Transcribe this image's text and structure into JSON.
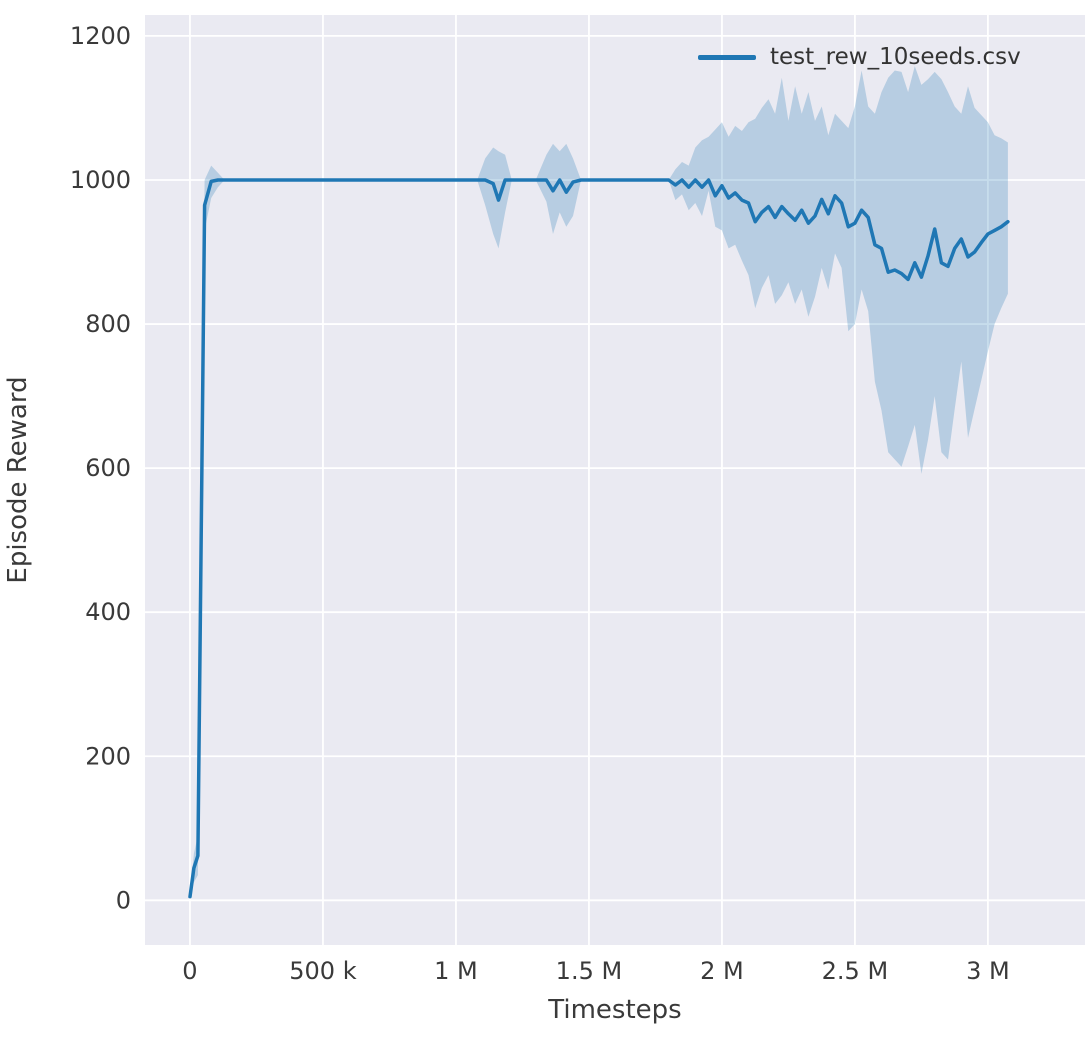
{
  "figure": {
    "background": "#ffffff",
    "axes_background": "#eaeaf2",
    "grid_color": "#ffffff",
    "tick_color": "#3a3a3a"
  },
  "chart_data": {
    "type": "line",
    "title": "",
    "xlabel": "Timesteps",
    "ylabel": "Episode Reward",
    "xlim": [
      -169000,
      3365000
    ],
    "ylim": [
      -62,
      1229
    ],
    "grid": true,
    "legend_position": "upper right",
    "x_ticks": [
      0,
      500000,
      1000000,
      1500000,
      2000000,
      2500000,
      3000000
    ],
    "x_tick_labels": [
      "0",
      "500 k",
      "1 M",
      "1.5 M",
      "2 M",
      "2.5 M",
      "3 M"
    ],
    "y_ticks": [
      0,
      200,
      400,
      600,
      800,
      1000,
      1200
    ],
    "y_tick_labels": [
      "0",
      "200",
      "400",
      "600",
      "800",
      "1000",
      "1200"
    ],
    "series": [
      {
        "name": "test_rew_10seeds.csv",
        "color": "#1f77b4",
        "band_color": "#1f77b4",
        "band_alpha": 0.25,
        "points_format": [
          "timestep",
          "mean_reward",
          "band_low",
          "band_high"
        ],
        "points": [
          [
            0,
            5,
            5,
            5
          ],
          [
            15000,
            45,
            25,
            65
          ],
          [
            30000,
            62,
            35,
            90
          ],
          [
            55000,
            965,
            930,
            1000
          ],
          [
            80000,
            998,
            975,
            1020
          ],
          [
            105000,
            1000,
            990,
            1010
          ],
          [
            130000,
            1000,
            1000,
            1000
          ],
          [
            300000,
            1000,
            1000,
            1000
          ],
          [
            500000,
            1000,
            1000,
            1000
          ],
          [
            700000,
            1000,
            1000,
            1000
          ],
          [
            900000,
            1000,
            1000,
            1000
          ],
          [
            1080000,
            1000,
            1000,
            1000
          ],
          [
            1110000,
            1000,
            965,
            1030
          ],
          [
            1140000,
            995,
            925,
            1045
          ],
          [
            1160000,
            972,
            905,
            1040
          ],
          [
            1185000,
            1000,
            955,
            1035
          ],
          [
            1210000,
            1000,
            1000,
            1000
          ],
          [
            1300000,
            1000,
            1000,
            1000
          ],
          [
            1340000,
            1000,
            970,
            1035
          ],
          [
            1365000,
            985,
            925,
            1050
          ],
          [
            1390000,
            1000,
            955,
            1040
          ],
          [
            1415000,
            983,
            935,
            1050
          ],
          [
            1440000,
            997,
            950,
            1030
          ],
          [
            1470000,
            1000,
            1000,
            1000
          ],
          [
            1600000,
            1000,
            1000,
            1000
          ],
          [
            1750000,
            1000,
            1000,
            1000
          ],
          [
            1800000,
            1000,
            1000,
            1000
          ],
          [
            1825000,
            993,
            972,
            1015
          ],
          [
            1850000,
            1000,
            980,
            1025
          ],
          [
            1875000,
            990,
            958,
            1020
          ],
          [
            1900000,
            1000,
            968,
            1045
          ],
          [
            1925000,
            990,
            950,
            1055
          ],
          [
            1950000,
            1000,
            985,
            1060
          ],
          [
            1975000,
            978,
            935,
            1070
          ],
          [
            2000000,
            992,
            930,
            1080
          ],
          [
            2025000,
            975,
            905,
            1060
          ],
          [
            2050000,
            982,
            910,
            1075
          ],
          [
            2075000,
            972,
            888,
            1068
          ],
          [
            2100000,
            968,
            868,
            1080
          ],
          [
            2125000,
            942,
            822,
            1085
          ],
          [
            2150000,
            955,
            850,
            1100
          ],
          [
            2175000,
            963,
            868,
            1112
          ],
          [
            2200000,
            948,
            828,
            1092
          ],
          [
            2225000,
            963,
            840,
            1142
          ],
          [
            2250000,
            953,
            858,
            1082
          ],
          [
            2275000,
            944,
            828,
            1130
          ],
          [
            2300000,
            958,
            848,
            1092
          ],
          [
            2325000,
            940,
            810,
            1122
          ],
          [
            2350000,
            950,
            838,
            1082
          ],
          [
            2375000,
            973,
            878,
            1102
          ],
          [
            2400000,
            953,
            848,
            1062
          ],
          [
            2425000,
            978,
            898,
            1092
          ],
          [
            2450000,
            968,
            878,
            1082
          ],
          [
            2475000,
            935,
            790,
            1072
          ],
          [
            2500000,
            940,
            800,
            1102
          ],
          [
            2525000,
            958,
            848,
            1152
          ],
          [
            2550000,
            948,
            818,
            1102
          ],
          [
            2575000,
            910,
            720,
            1092
          ],
          [
            2600000,
            905,
            680,
            1122
          ],
          [
            2625000,
            872,
            622,
            1142
          ],
          [
            2650000,
            875,
            612,
            1152
          ],
          [
            2675000,
            870,
            602,
            1150
          ],
          [
            2700000,
            862,
            630,
            1122
          ],
          [
            2725000,
            885,
            660,
            1158
          ],
          [
            2750000,
            865,
            592,
            1132
          ],
          [
            2775000,
            895,
            640,
            1140
          ],
          [
            2800000,
            932,
            700,
            1150
          ],
          [
            2825000,
            885,
            622,
            1140
          ],
          [
            2850000,
            880,
            612,
            1122
          ],
          [
            2875000,
            905,
            682,
            1102
          ],
          [
            2900000,
            918,
            748,
            1092
          ],
          [
            2925000,
            893,
            642,
            1130
          ],
          [
            2950000,
            900,
            682,
            1100
          ],
          [
            2975000,
            913,
            722,
            1090
          ],
          [
            3000000,
            925,
            762,
            1080
          ],
          [
            3025000,
            930,
            800,
            1062
          ],
          [
            3050000,
            935,
            822,
            1058
          ],
          [
            3075000,
            942,
            842,
            1052
          ]
        ]
      }
    ]
  }
}
